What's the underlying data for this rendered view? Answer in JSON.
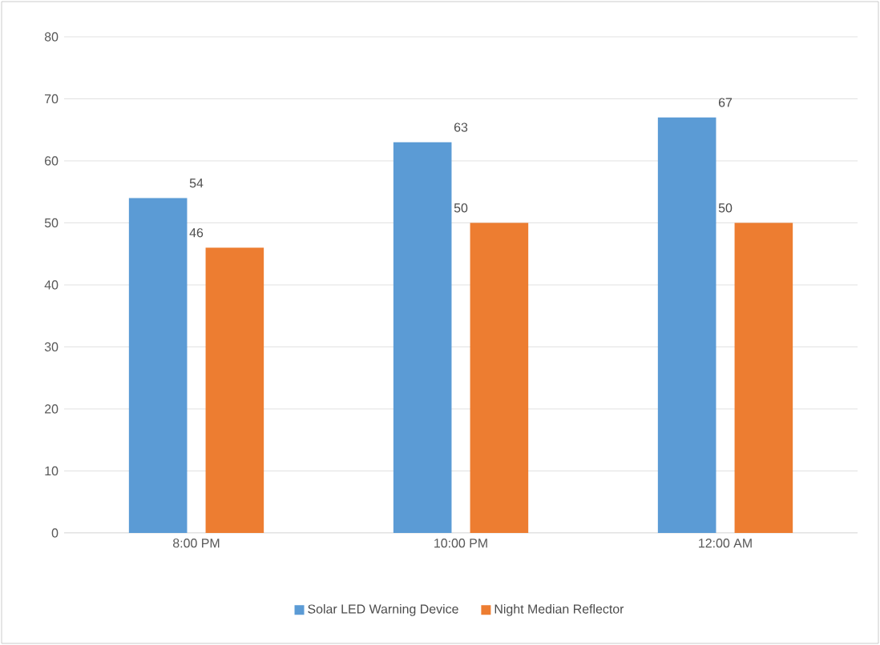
{
  "chart_data": {
    "type": "bar",
    "categories": [
      "8:00 PM",
      "10:00 PM",
      "12:00 AM"
    ],
    "series": [
      {
        "name": "Solar LED Warning Device",
        "color": "#5b9bd5",
        "values": [
          54,
          63,
          67
        ]
      },
      {
        "name": "Night Median Reflector",
        "color": "#ed7d31",
        "values": [
          46,
          50,
          50
        ]
      }
    ],
    "ylim": [
      0,
      80
    ],
    "yticks": [
      0,
      10,
      20,
      30,
      40,
      50,
      60,
      70,
      80
    ],
    "grid": "y",
    "legend": "bottom",
    "data_labels": true
  }
}
